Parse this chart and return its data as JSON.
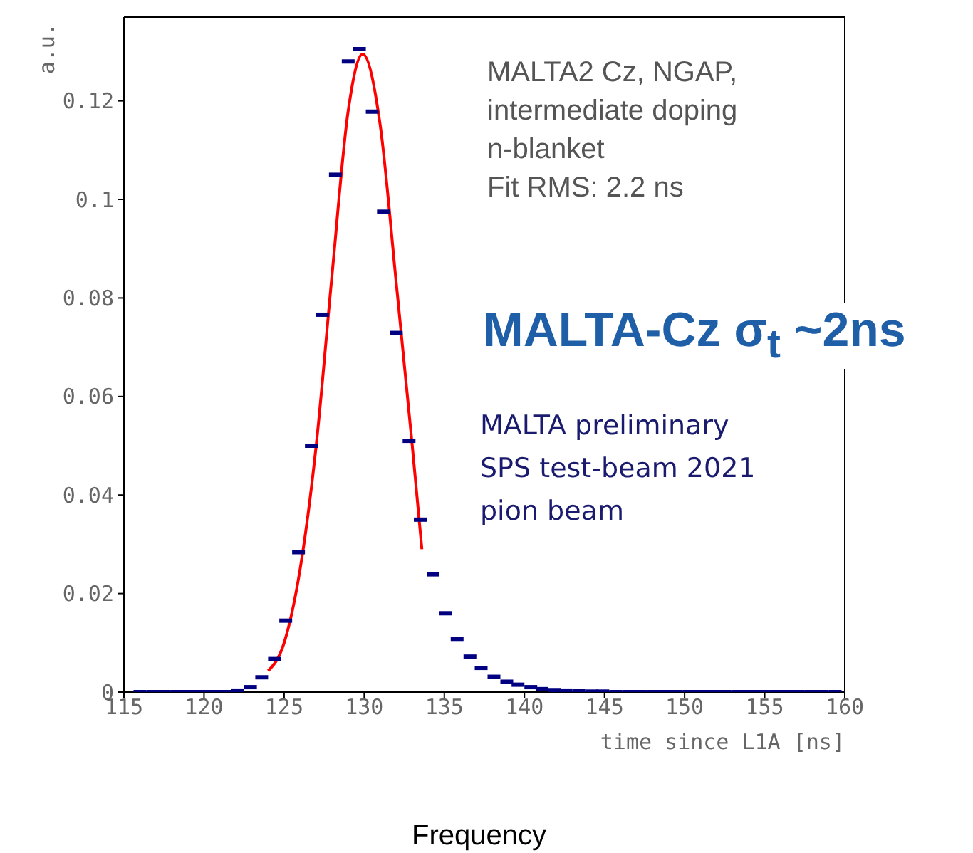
{
  "chart_data": {
    "type": "scatter",
    "xlabel": "time since L1A [ns]",
    "ylabel": "a.u.",
    "annotations": [
      "MALTA2 Cz, NGAP,\nintermediate doping\nn-blanket\nFit RMS: 2.2 ns",
      "MALTA-Cz σ$_{t}$ ~2ns",
      "MALTA preliminary\nSPS test-beam 2021\npion beam",
      "Frequency"
    ],
    "xlim": [
      115,
      160
    ],
    "xticks": [
      115,
      120,
      125,
      130,
      135,
      140,
      145,
      150,
      155,
      160
    ],
    "ylim": [
      0,
      0.137
    ],
    "yticks": [
      0,
      0.02,
      0.04,
      0.06,
      0.08,
      0.1,
      0.12
    ],
    "series": [
      {
        "type": "scatter",
        "color": "#000080",
        "x": [
          116.0,
          116.8,
          117.5,
          118.3,
          119.0,
          119.8,
          120.6,
          121.3,
          122.1,
          122.9,
          123.6,
          124.4,
          125.1,
          125.9,
          126.7,
          127.4,
          128.2,
          129.0,
          129.7,
          130.5,
          131.2,
          132.0,
          132.8,
          133.5,
          134.3,
          135.1,
          135.8,
          136.6,
          137.3,
          138.1,
          138.9,
          139.6,
          140.4,
          141.1,
          141.9,
          142.6,
          143.4,
          144.2,
          144.9,
          145.7,
          146.5,
          147.2,
          148.0,
          148.7,
          149.5,
          150.3,
          151.0,
          151.8,
          152.5,
          153.3,
          154.1,
          154.8,
          155.6,
          156.4,
          157.1,
          157.9,
          158.6,
          159.4
        ],
        "values": [
          0,
          0,
          0,
          0,
          0,
          0,
          0,
          0,
          0.0003,
          0.001,
          0.003,
          0.0067,
          0.0145,
          0.0284,
          0.05,
          0.0766,
          0.105,
          0.128,
          0.1305,
          0.1178,
          0.0975,
          0.0729,
          0.051,
          0.035,
          0.0239,
          0.016,
          0.0108,
          0.0072,
          0.0049,
          0.0031,
          0.0021,
          0.0015,
          0.001,
          0.0006,
          0.0004,
          0.0003,
          0.0002,
          0.0001,
          0.0001,
          0,
          0,
          0,
          0,
          0,
          0,
          0,
          0,
          0,
          0,
          0,
          0,
          0,
          0,
          0,
          0,
          0,
          0,
          0
        ]
      },
      {
        "type": "line",
        "color": "#ff0000",
        "x": [
          124.0,
          125.0,
          126.0,
          127.0,
          128.0,
          129.0,
          129.9,
          131.0,
          132.0,
          133.0,
          133.6
        ],
        "values": [
          0.0043,
          0.01,
          0.025,
          0.05,
          0.085,
          0.118,
          0.1295,
          0.115,
          0.083,
          0.05,
          0.029
        ]
      }
    ]
  }
}
